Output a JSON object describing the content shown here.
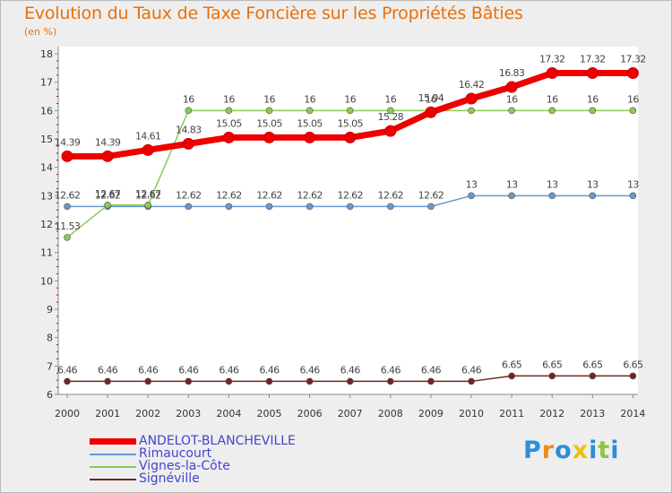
{
  "chart_data": {
    "type": "line",
    "title": "Evolution du Taux de Taxe Foncière sur les Propriétés Bâties",
    "subtitle": "(en %)",
    "categories": [
      "2000",
      "2001",
      "2002",
      "2003",
      "2004",
      "2005",
      "2006",
      "2007",
      "2008",
      "2009",
      "2010",
      "2011",
      "2012",
      "2013",
      "2014"
    ],
    "ylim": [
      6,
      18
    ],
    "yticks": [
      "6",
      "7",
      "8",
      "9",
      "10",
      "11",
      "12",
      "13",
      "14",
      "15",
      "16",
      "17",
      "18"
    ],
    "series": [
      {
        "name": "ANDELOT-BLANCHEVILLE",
        "color": "#ee0000",
        "values": [
          14.39,
          14.39,
          14.61,
          14.83,
          15.05,
          15.05,
          15.05,
          15.05,
          15.28,
          15.94,
          16.42,
          16.83,
          17.32,
          17.32,
          17.32
        ],
        "labels": [
          "14.39",
          "14.39",
          "14.61",
          "14.83",
          "15.05",
          "15.05",
          "15.05",
          "15.05",
          "15.28",
          "15.94",
          "16.42",
          "16.83",
          "17.32",
          "17.32",
          "17.32"
        ]
      },
      {
        "name": "Rimaucourt",
        "color": "#6699cc",
        "values": [
          12.62,
          12.62,
          12.62,
          12.62,
          12.62,
          12.62,
          12.62,
          12.62,
          12.62,
          12.62,
          13,
          13,
          13,
          13,
          13
        ],
        "labels": [
          "12.62",
          "12.62",
          "12.62",
          "12.62",
          "12.62",
          "12.62",
          "12.62",
          "12.62",
          "12.62",
          "12.62",
          "13",
          "13",
          "13",
          "13",
          "13"
        ]
      },
      {
        "name": "Vignes-la-Côte",
        "color": "#88cc55",
        "values": [
          11.53,
          12.67,
          12.67,
          16,
          16,
          16,
          16,
          16,
          16,
          16,
          16,
          16,
          16,
          16,
          16
        ],
        "labels": [
          "11.53",
          "12.67",
          "12.67",
          "16",
          "16",
          "16",
          "16",
          "16",
          "16",
          "16",
          "16",
          "16",
          "16",
          "16",
          "16"
        ]
      },
      {
        "name": "Signéville",
        "color": "#772222",
        "values": [
          6.46,
          6.46,
          6.46,
          6.46,
          6.46,
          6.46,
          6.46,
          6.46,
          6.46,
          6.46,
          6.46,
          6.65,
          6.65,
          6.65,
          6.65
        ],
        "labels": [
          "6.46",
          "6.46",
          "6.46",
          "6.46",
          "6.46",
          "6.46",
          "6.46",
          "6.46",
          "6.46",
          "6.46",
          "6.46",
          "6.65",
          "6.65",
          "6.65",
          "6.65"
        ]
      }
    ]
  },
  "logo": {
    "letters": [
      "P",
      "r",
      "o",
      "x",
      "i",
      "t",
      "i"
    ],
    "colors": [
      "#2a8fd6",
      "#f08a1c",
      "#2a8fd6",
      "#f0c010",
      "#2a8fd6",
      "#8cc63f",
      "#2a8fd6"
    ]
  }
}
